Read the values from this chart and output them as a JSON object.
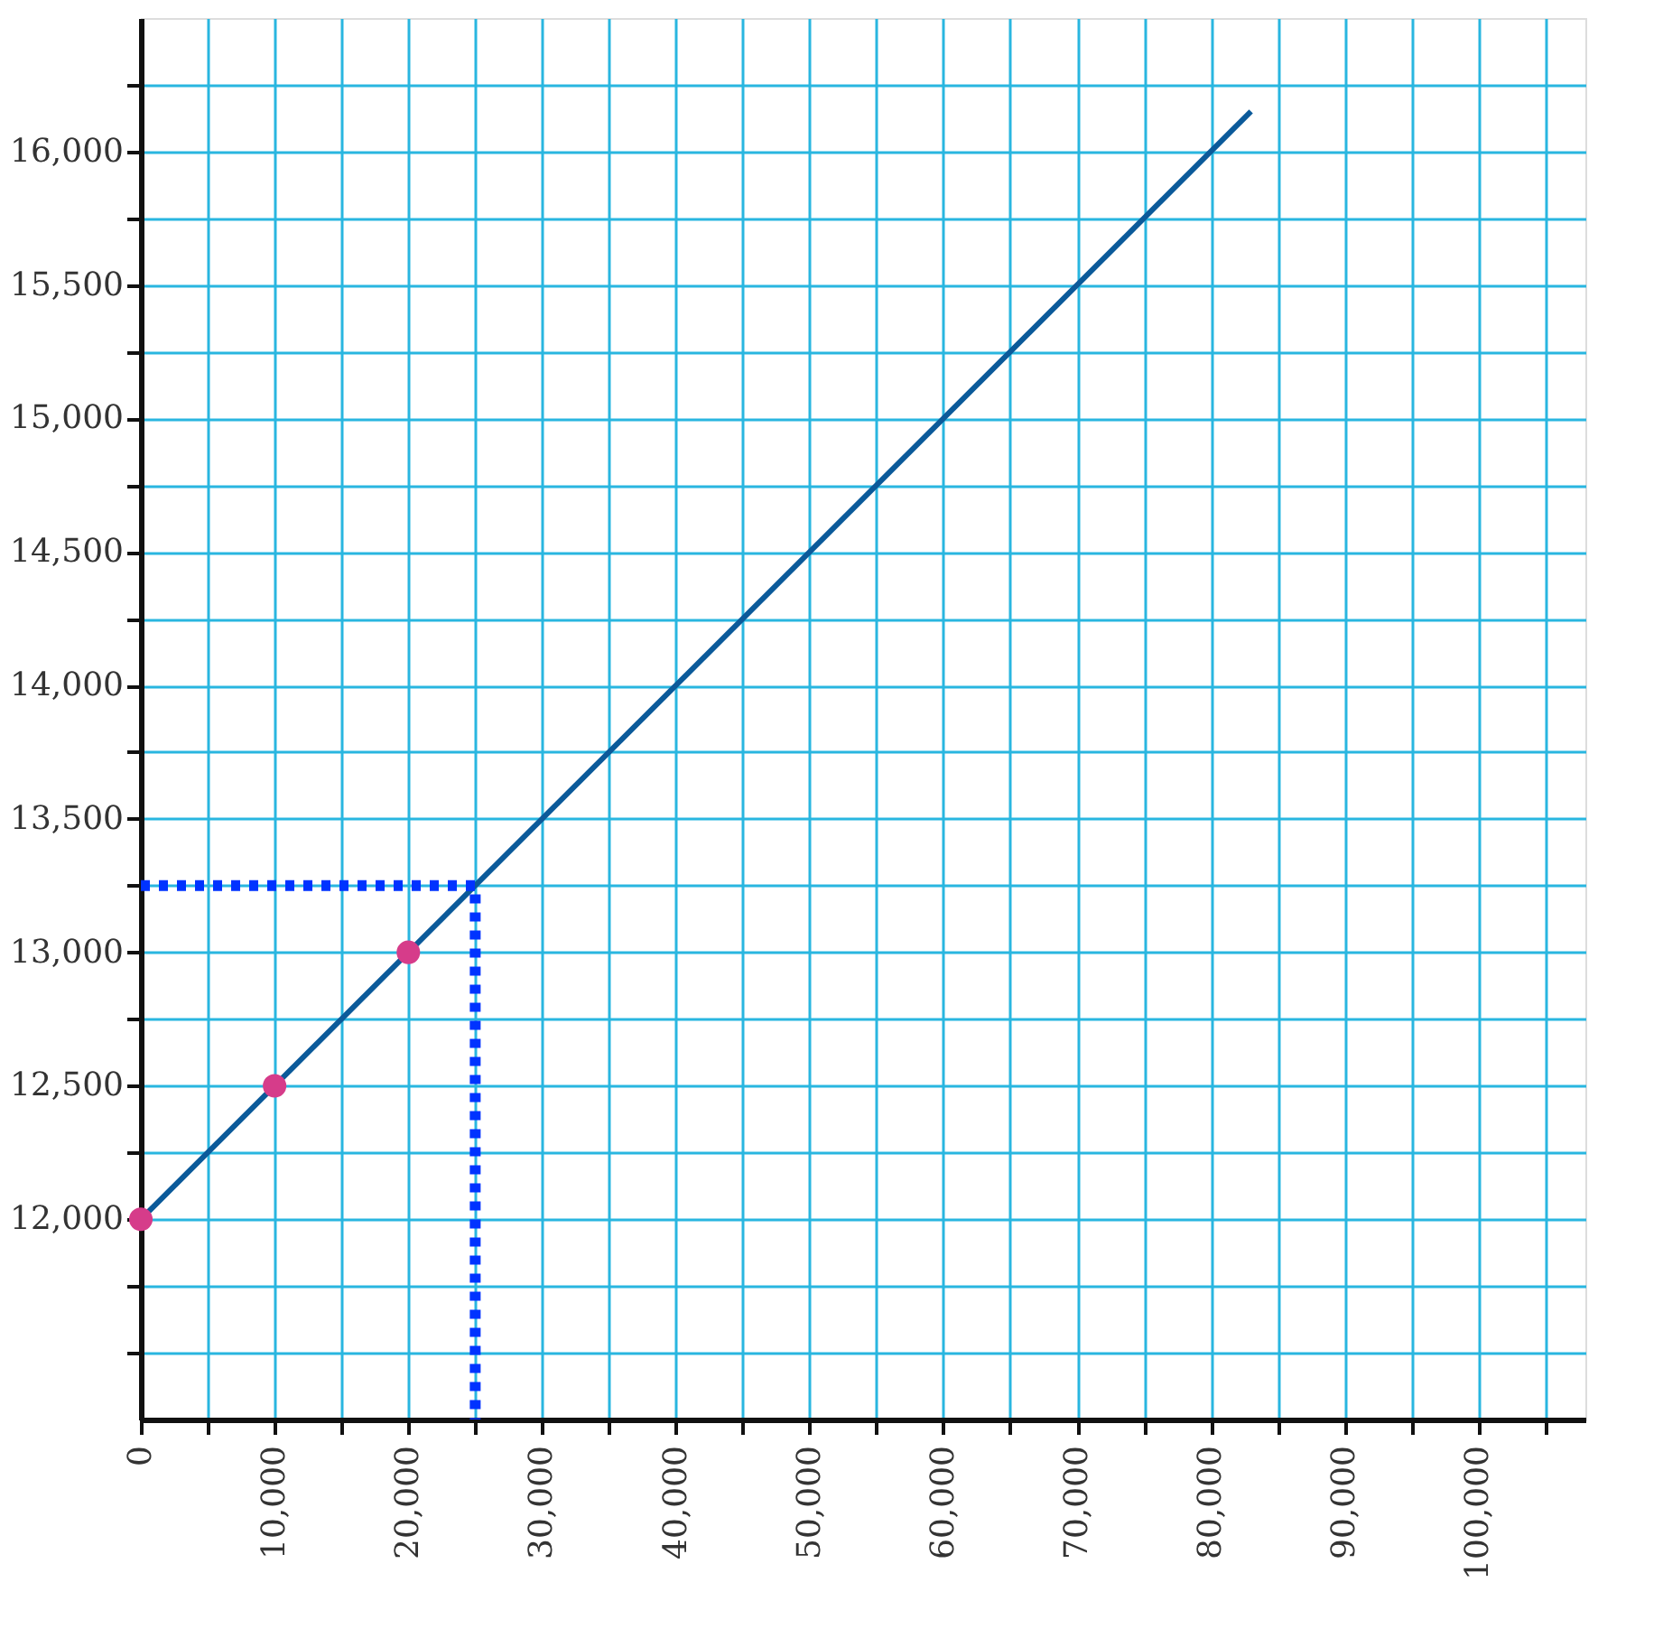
{
  "chart_data": {
    "type": "line",
    "xlim": [
      0,
      108000
    ],
    "ylim": [
      11250,
      16500
    ],
    "xticks": [
      0,
      {
        "value": 5000,
        "label": null
      },
      {
        "value": 10000,
        "label": "10,000"
      },
      {
        "value": 15000,
        "label": null
      },
      {
        "value": 20000,
        "label": "20,000"
      },
      {
        "value": 25000,
        "label": null
      },
      {
        "value": 30000,
        "label": "30,000"
      },
      {
        "value": 35000,
        "label": null
      },
      {
        "value": 40000,
        "label": "40,000"
      },
      {
        "value": 45000,
        "label": null
      },
      {
        "value": 50000,
        "label": "50,000"
      },
      {
        "value": 55000,
        "label": null
      },
      {
        "value": 60000,
        "label": "60,000"
      },
      {
        "value": 65000,
        "label": null
      },
      {
        "value": 70000,
        "label": "70,000"
      },
      {
        "value": 75000,
        "label": null
      },
      {
        "value": 80000,
        "label": "80,000"
      },
      {
        "value": 85000,
        "label": null
      },
      {
        "value": 90000,
        "label": "90,000"
      },
      {
        "value": 95000,
        "label": null
      },
      {
        "value": 100000,
        "label": "100,000"
      },
      {
        "value": 105000,
        "label": null
      }
    ],
    "yticks": [
      {
        "value": 11500,
        "label": null
      },
      {
        "value": 11750,
        "label": null
      },
      {
        "value": 12000,
        "label": "12,000"
      },
      {
        "value": 12250,
        "label": null
      },
      {
        "value": 12500,
        "label": "12,500"
      },
      {
        "value": 12750,
        "label": null
      },
      {
        "value": 13000,
        "label": "13,000"
      },
      {
        "value": 13250,
        "label": null
      },
      {
        "value": 13500,
        "label": "13,500"
      },
      {
        "value": 13750,
        "label": null
      },
      {
        "value": 14000,
        "label": "14,000"
      },
      {
        "value": 14250,
        "label": null
      },
      {
        "value": 14500,
        "label": "14,500"
      },
      {
        "value": 14750,
        "label": null
      },
      {
        "value": 15000,
        "label": "15,000"
      },
      {
        "value": 15250,
        "label": null
      },
      {
        "value": 15500,
        "label": "15,500"
      },
      {
        "value": 15750,
        "label": null
      },
      {
        "value": 16000,
        "label": "16,000"
      },
      {
        "value": 16250,
        "label": null
      }
    ],
    "grid": true,
    "series": [
      {
        "color": "#0b5a9a",
        "line_style": "solid",
        "x": [
          0,
          83000
        ],
        "values": [
          12000,
          16150
        ]
      },
      {
        "type": "scatter",
        "color": "#d63c8a",
        "marker": "circle",
        "x": [
          0,
          10000,
          20000
        ],
        "values": [
          12000,
          12500,
          13000
        ]
      },
      {
        "type": "line",
        "color": "#0033ff",
        "line_style": "dotted",
        "x": [
          0,
          25000,
          25000
        ],
        "values": [
          13250,
          13250,
          11250
        ]
      }
    ]
  }
}
